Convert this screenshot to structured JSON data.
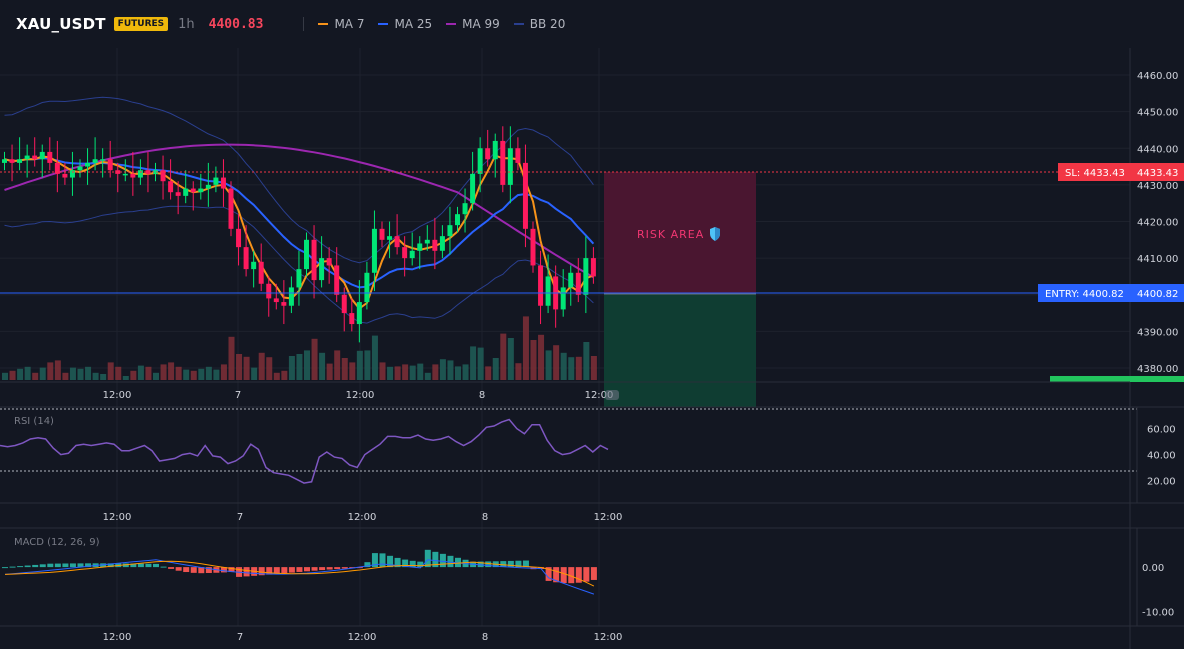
{
  "header": {
    "symbol": "XAU_USDT",
    "market_badge": "FUTURES",
    "timeframe": "1h",
    "last_price": "4400.83",
    "indicators": [
      {
        "label": "MA 7",
        "color": "#f7931a"
      },
      {
        "label": "MA 25",
        "color": "#2962ff"
      },
      {
        "label": "MA 99",
        "color": "#9c27b0"
      },
      {
        "label": "BB 20",
        "color": "#1e3a8a"
      }
    ]
  },
  "price_axis": {
    "ticks": [
      "4460.00",
      "4450.00",
      "4440.00",
      "4430.00",
      "4420.00",
      "4410.00",
      "4400.00",
      "4390.00",
      "4380.00"
    ],
    "tick_values": [
      4460,
      4450,
      4440,
      4430,
      4420,
      4410,
      4400,
      4390,
      4380
    ],
    "range": [
      4377,
      4465
    ]
  },
  "time_axis": {
    "labels": [
      "12:00",
      "7",
      "12:00",
      "8",
      "12:00"
    ]
  },
  "trade": {
    "stop_loss_tag": "SL: 4433.43",
    "stop_loss_value": "4433.43",
    "stop_loss_price": 4433.43,
    "entry_tag": "ENTRY: 4400.82",
    "entry_value": "4400.82",
    "entry_price": 4400.82,
    "risk_label": "RISK AREA",
    "colors": {
      "stop": "#f23645",
      "entry": "#2962ff",
      "risk": "#5a1a35",
      "reward": "#0f3d32",
      "tp": "#22c55e"
    }
  },
  "rsi": {
    "label": "RSI (14)",
    "ticks": [
      "60.00",
      "40.00",
      "20.00"
    ],
    "tick_values": [
      60,
      40,
      20
    ],
    "range": [
      5,
      72
    ],
    "upper": 70,
    "lower": 30,
    "values": [
      47,
      46,
      47,
      49,
      52,
      53,
      52,
      45,
      40,
      41,
      47,
      48,
      47,
      48,
      49,
      48,
      43,
      43,
      45,
      47,
      43,
      35,
      36,
      37,
      40,
      41,
      39,
      47,
      39,
      38,
      33,
      35,
      39,
      48,
      44,
      30,
      26,
      25,
      24,
      21,
      18,
      19,
      38,
      42,
      38,
      37,
      32,
      30,
      40,
      44,
      48,
      54,
      54,
      53,
      53,
      55,
      52,
      51,
      52,
      54,
      50,
      47,
      50,
      55,
      61,
      62,
      65,
      67,
      60,
      56,
      63,
      63,
      51,
      43,
      40,
      41,
      44,
      47,
      42,
      47,
      44
    ]
  },
  "macd": {
    "label": "MACD (12, 26, 9)",
    "ticks": [
      "0.00",
      "-10.00"
    ],
    "tick_values": [
      0,
      -10
    ],
    "range": [
      -11,
      7
    ]
  },
  "colors": {
    "up": "#26a69a",
    "down": "#ef5350",
    "candle_up": "#00e676",
    "candle_down": "#ff1a5e",
    "rsi": "#7e57c2"
  }
}
